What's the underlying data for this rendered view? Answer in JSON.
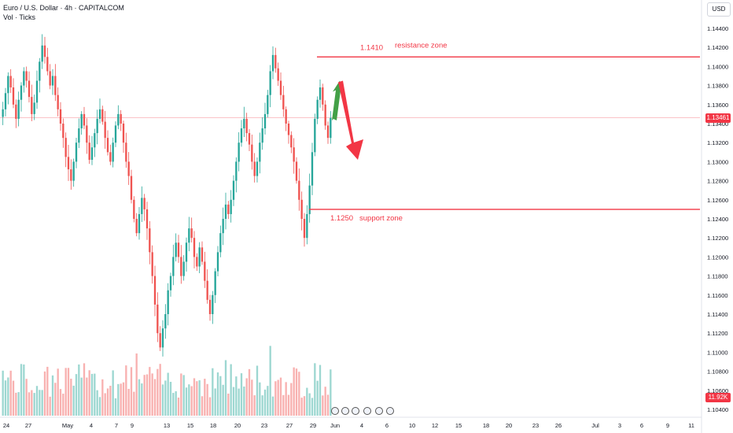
{
  "header": {
    "symbol_title": "Euro / U.S. Dollar · 4h · CAPITALCOM",
    "volume_title": "Vol · Ticks",
    "currency_button": "USD"
  },
  "price_axis": {
    "labels": [
      "1.14400",
      "1.14200",
      "1.14000",
      "1.13800",
      "1.13600",
      "1.13400",
      "1.13200",
      "1.13000",
      "1.12800",
      "1.12600",
      "1.12400",
      "1.12200",
      "1.12000",
      "1.11800",
      "1.11600",
      "1.11400",
      "1.11200",
      "1.11000",
      "1.10800",
      "1.10600",
      "1.10400"
    ],
    "current_price": "1.13461",
    "current_volume": "11.92K"
  },
  "time_axis": {
    "labels": [
      "24",
      "27",
      "May",
      "4",
      "7",
      "9",
      "13",
      "15",
      "18",
      "20",
      "23",
      "27",
      "29",
      "Jun",
      "4",
      "6",
      "10",
      "12",
      "15",
      "18",
      "20",
      "23",
      "26",
      "Jul",
      "3",
      "6",
      "9",
      "11"
    ]
  },
  "annotations": {
    "resistance_value": "1.1410",
    "resistance_text": "resistance zone",
    "support_value": "1.1250",
    "support_text": "support zone"
  },
  "event_icons": [
    "lightning-icon",
    "flag-icon",
    "flag-icon",
    "flag-icon",
    "flag-icon",
    "flag-icon"
  ],
  "colors": {
    "up": "#26a69a",
    "down": "#ef5350",
    "annotation": "#f23645",
    "price_tag": "#f23645",
    "volume_tag": "#f23645"
  },
  "chart_data": {
    "type": "candlestick",
    "title": "Euro / U.S. Dollar · 4h · CAPITALCOM",
    "ylim": [
      1.1035,
      1.1455
    ],
    "current_price": 1.13461,
    "levels": [
      {
        "label": "resistance zone",
        "value": 1.141
      },
      {
        "label": "support zone",
        "value": 1.125
      }
    ],
    "ohlc_close_path": [
      1.1355,
      1.1372,
      1.139,
      1.1378,
      1.136,
      1.1345,
      1.1365,
      1.138,
      1.1395,
      1.1385,
      1.1368,
      1.135,
      1.1362,
      1.1385,
      1.1405,
      1.1422,
      1.141,
      1.1395,
      1.138,
      1.139,
      1.137,
      1.1355,
      1.134,
      1.1325,
      1.1305,
      1.1292,
      1.128,
      1.13,
      1.132,
      1.1335,
      1.135,
      1.1338,
      1.132,
      1.1302,
      1.1315,
      1.133,
      1.1345,
      1.1355,
      1.1342,
      1.1325,
      1.131,
      1.13,
      1.132,
      1.1338,
      1.135,
      1.134,
      1.132,
      1.13,
      1.1285,
      1.126,
      1.124,
      1.1225,
      1.1245,
      1.1262,
      1.125,
      1.123,
      1.1205,
      1.118,
      1.115,
      1.112,
      1.1105,
      1.1125,
      1.114,
      1.1165,
      1.118,
      1.12,
      1.1215,
      1.12,
      1.118,
      1.1195,
      1.1215,
      1.123,
      1.122,
      1.12,
      1.119,
      1.121,
      1.1195,
      1.1175,
      1.1155,
      1.114,
      1.116,
      1.1185,
      1.1205,
      1.1225,
      1.124,
      1.1255,
      1.1245,
      1.126,
      1.128,
      1.13,
      1.132,
      1.1335,
      1.1345,
      1.133,
      1.1318,
      1.13,
      1.1285,
      1.13,
      1.132,
      1.1335,
      1.135,
      1.137,
      1.1395,
      1.1412,
      1.1398,
      1.1385,
      1.137,
      1.1355,
      1.134,
      1.1328,
      1.1315,
      1.13,
      1.128,
      1.126,
      1.124,
      1.122,
      1.1245,
      1.1275,
      1.131,
      1.1345,
      1.1365,
      1.1378,
      1.136,
      1.1338,
      1.1325,
      1.1346
    ],
    "volume_max": 22,
    "arrows": [
      {
        "direction": "up",
        "from": 1.1345,
        "to": 1.1385
      },
      {
        "direction": "down",
        "from": 1.1385,
        "to": 1.1302
      }
    ]
  }
}
